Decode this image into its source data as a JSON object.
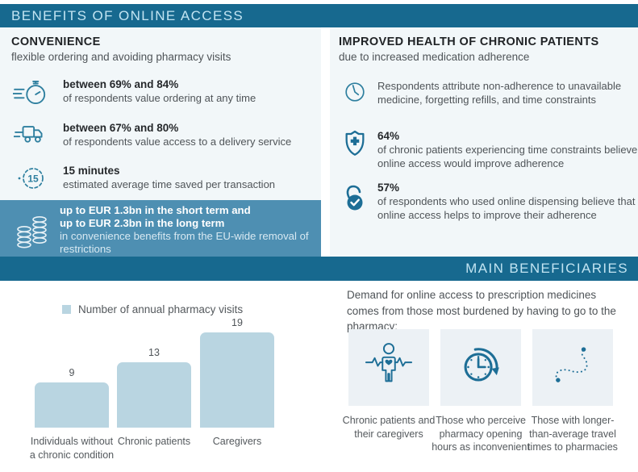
{
  "colors": {
    "banner_bg": "#17698f",
    "banner_text": "#c2e4f2",
    "highlight_bg": "#4e8fb2",
    "panel_bg": "#f2f7f9",
    "bar_fill": "#b9d5e1",
    "icon_teal": "#2e7f9f",
    "icon_dark": "#1d6e96",
    "tile_bg": "#ecf1f5"
  },
  "header": {
    "title": "BENEFITS OF ONLINE ACCESS"
  },
  "convenience": {
    "title": "CONVENIENCE",
    "subtitle": "flexible ordering and avoiding pharmacy visits",
    "fifteen_label": "15",
    "stats": [
      {
        "icon": "speeding-stopwatch-icon",
        "lead": "between 69% and 84%",
        "body": "of respondents value ordering at any time"
      },
      {
        "icon": "delivery-truck-icon",
        "lead": "between 67% and 80%",
        "body": "of respondents value access to a delivery service"
      },
      {
        "icon": "fifteen-minutes-icon",
        "lead": "15 minutes",
        "body": "estimated average time saved per transaction"
      }
    ],
    "highlight": {
      "icon": "coin-stacks-icon",
      "lead_line1": "up to EUR 1.3bn in the short term and",
      "lead_line2": "up to EUR 2.3bn in the long term",
      "body": "in convenience benefits from the EU-wide removal of restrictions"
    }
  },
  "health": {
    "title": "IMPROVED HEALTH OF CHRONIC PATIENTS",
    "subtitle": "due to increased medication adherence",
    "stats": [
      {
        "icon": "clock-icon",
        "lead": "",
        "body": "Respondents attribute non-adherence to unavailable medicine, forgetting refills, and time constraints"
      },
      {
        "icon": "shield-plus-icon",
        "lead": "64%",
        "body": "of chronic patients experiencing time constraints believe online access would improve adherence"
      },
      {
        "icon": "lock-check-icon",
        "lead": "57%",
        "body": "of respondents who used online dispensing believe that online access helps to improve their adherence"
      }
    ]
  },
  "beneficiaries_banner": {
    "title": "MAIN BENEFICIARIES"
  },
  "beneficiaries": {
    "intro": "Demand for online access to prescription medicines comes from those most burdened by having to go to the pharmacy:",
    "groups": [
      {
        "icon": "patient-heartbeat-icon",
        "label": "Chronic patients and their caregivers"
      },
      {
        "icon": "pharmacy-hours-clock-icon",
        "label": "Those who perceive pharmacy opening hours as inconvenient"
      },
      {
        "icon": "travel-route-icon",
        "label": "Those with longer-than-average travel times to pharmacies"
      }
    ]
  },
  "chart_data": {
    "type": "bar",
    "title": "",
    "legend": "Number of annual pharmacy visits",
    "legend_position": "top",
    "categories": [
      "Individuals without a chronic condition",
      "Chronic patients",
      "Caregivers"
    ],
    "values": [
      9,
      13,
      19
    ],
    "ylim": [
      0,
      20
    ],
    "grid": false,
    "axis_labels_shown": false,
    "bar_color": "#b9d5e1"
  }
}
